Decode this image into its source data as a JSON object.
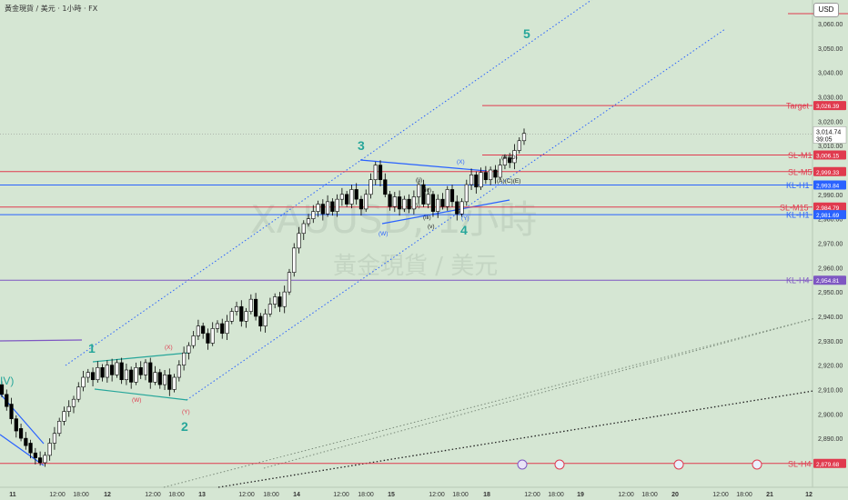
{
  "header": {
    "title": "黃金現貨 / 美元 · 1小時 · FX",
    "currency_button": "USD"
  },
  "watermark": {
    "symbol": "XAUUSD, 1小時",
    "name": "黃金現貨 / 美元"
  },
  "price_axis": {
    "ticks": [
      "3,060.00",
      "3,050.00",
      "3,040.00",
      "3,030.00",
      "3,020.00",
      "3,010.00",
      "3,000.00",
      "2,990.00",
      "2,980.00",
      "2,970.00",
      "2,960.00",
      "2,950.00",
      "2,940.00",
      "2,930.00",
      "2,920.00",
      "2,910.00",
      "2,900.00",
      "2,890.00",
      "2,880.00"
    ],
    "current_price": "3,014.74",
    "countdown": "39:05"
  },
  "time_axis": {
    "ticks": [
      {
        "label": "11",
        "bold": true
      },
      {
        "label": "12:00"
      },
      {
        "label": "18:00"
      },
      {
        "label": "12",
        "bold": true
      },
      {
        "label": "12:00"
      },
      {
        "label": "18:00"
      },
      {
        "label": "13",
        "bold": true
      },
      {
        "label": "12:00"
      },
      {
        "label": "18:00"
      },
      {
        "label": "14",
        "bold": true
      },
      {
        "label": "12:00"
      },
      {
        "label": "18:00"
      },
      {
        "label": "15",
        "bold": true
      },
      {
        "label": "12:00"
      },
      {
        "label": "18:00"
      },
      {
        "label": "18",
        "bold": true
      },
      {
        "label": "12:00"
      },
      {
        "label": "18:00"
      },
      {
        "label": "19",
        "bold": true
      },
      {
        "label": "12:00"
      },
      {
        "label": "18:00"
      },
      {
        "label": "20",
        "bold": true
      },
      {
        "label": "12:00"
      },
      {
        "label": "18:00"
      },
      {
        "label": "21",
        "bold": true
      },
      {
        "label": "12",
        "bold": true
      }
    ]
  },
  "levels": [
    {
      "name": "Target",
      "value": "3,026.39",
      "color": "#e03a4e"
    },
    {
      "name": "SL-M1",
      "value": "3,006.15",
      "color": "#e03a4e"
    },
    {
      "name": "SL-M5",
      "value": "2,999.33",
      "color": "#e03a4e"
    },
    {
      "name": "KL-H1",
      "value": "2,993.84",
      "color": "#2962ff"
    },
    {
      "name": "SL-M15",
      "value": "2,984.79",
      "color": "#e03a4e"
    },
    {
      "name": "KL-H1",
      "value": "2,981.69",
      "color": "#2962ff"
    },
    {
      "name": "KL-H4",
      "value": "2,954.81",
      "color": "#7e57c2"
    },
    {
      "name": "SL-H4",
      "value": "2,879.68",
      "color": "#e03a4e"
    }
  ],
  "wave_labels": {
    "major": [
      "1",
      "2",
      "3",
      "4",
      "5"
    ],
    "wave_iv": "IV)",
    "minor": [
      "(X)",
      "(W)",
      "(Y)",
      "(X)",
      "(W)",
      "(Y)",
      "(i)",
      "(ii)",
      "(iii)",
      "(iv)",
      "(v)",
      "(A)(C)(E)",
      "(B)(D)"
    ]
  },
  "colors": {
    "background": "#d5e6d3",
    "bull": "#ffffff",
    "bear": "#000000",
    "channel": "#2962ff",
    "wave": "#26a69a",
    "red": "#e03a4e",
    "purple": "#7e57c2"
  }
}
